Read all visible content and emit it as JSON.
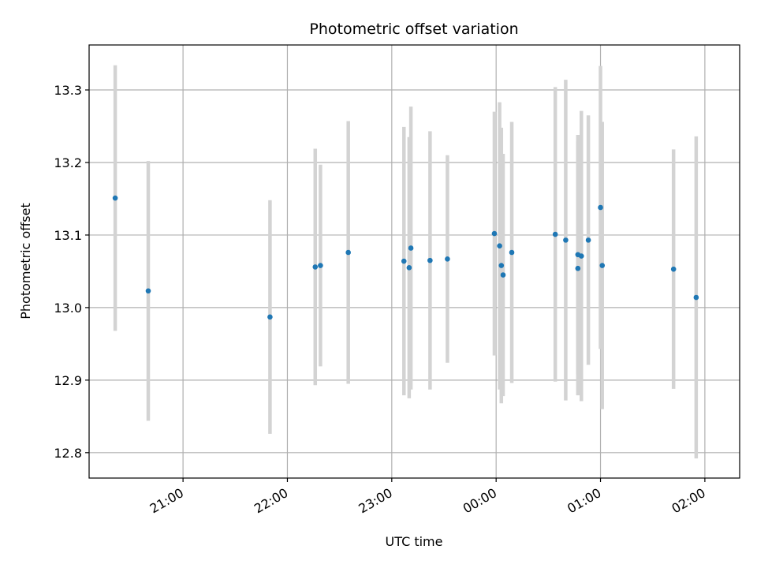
{
  "chart_data": {
    "type": "scatter",
    "title": "Photometric offset variation",
    "xlabel": "UTC time",
    "ylabel": "Photometric offset",
    "x_axis_type": "time",
    "x_range": [
      "20:06",
      "02:20"
    ],
    "ylim": [
      12.765,
      13.362
    ],
    "grid": true,
    "x_ticks": [
      "21:00",
      "22:00",
      "23:00",
      "00:00",
      "01:00",
      "02:00"
    ],
    "y_ticks": [
      "12.8",
      "12.9",
      "13.0",
      "13.1",
      "13.2",
      "13.3"
    ],
    "colors": {
      "point": "#1f77b4",
      "errorbar": "#d3d3d3",
      "grid": "#b0b0b0"
    },
    "points": [
      {
        "time": "20:21",
        "y": 13.151,
        "err": 0.183
      },
      {
        "time": "20:40",
        "y": 13.023,
        "err": 0.179
      },
      {
        "time": "21:50",
        "y": 12.987,
        "err": 0.161
      },
      {
        "time": "22:16",
        "y": 13.056,
        "err": 0.163
      },
      {
        "time": "22:19",
        "y": 13.058,
        "err": 0.139
      },
      {
        "time": "22:35",
        "y": 13.076,
        "err": 0.181
      },
      {
        "time": "23:07",
        "y": 13.064,
        "err": 0.185
      },
      {
        "time": "23:10",
        "y": 13.055,
        "err": 0.18
      },
      {
        "time": "23:11",
        "y": 13.082,
        "err": 0.195
      },
      {
        "time": "23:22",
        "y": 13.065,
        "err": 0.178
      },
      {
        "time": "23:32",
        "y": 13.067,
        "err": 0.143
      },
      {
        "time": "23:59",
        "y": 13.102,
        "err": 0.168
      },
      {
        "time": "00:02",
        "y": 13.085,
        "err": 0.198
      },
      {
        "time": "00:03",
        "y": 13.058,
        "err": 0.19
      },
      {
        "time": "00:04",
        "y": 13.045,
        "err": 0.167
      },
      {
        "time": "00:09",
        "y": 13.076,
        "err": 0.18
      },
      {
        "time": "00:34",
        "y": 13.101,
        "err": 0.203
      },
      {
        "time": "00:40",
        "y": 13.093,
        "err": 0.221
      },
      {
        "time": "00:47",
        "y": 13.073,
        "err": 0.165
      },
      {
        "time": "00:47",
        "y": 13.054,
        "err": 0.175
      },
      {
        "time": "00:49",
        "y": 13.071,
        "err": 0.2
      },
      {
        "time": "00:53",
        "y": 13.093,
        "err": 0.172
      },
      {
        "time": "01:00",
        "y": 13.138,
        "err": 0.195
      },
      {
        "time": "01:01",
        "y": 13.058,
        "err": 0.198
      },
      {
        "time": "01:42",
        "y": 13.053,
        "err": 0.165
      },
      {
        "time": "01:55",
        "y": 13.014,
        "err": 0.222
      }
    ]
  }
}
